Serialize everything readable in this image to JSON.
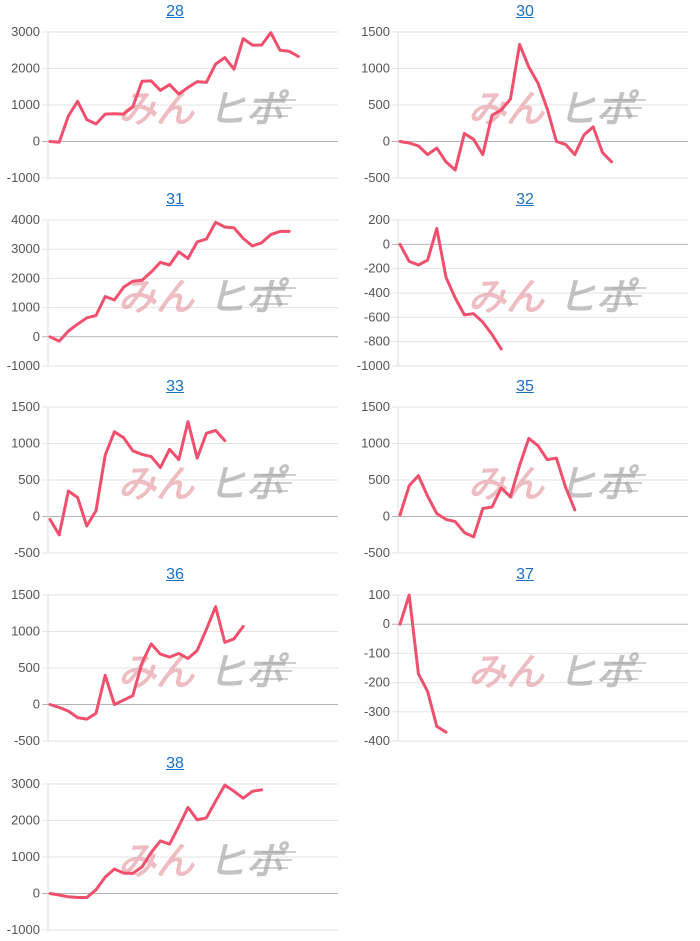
{
  "watermark": {
    "left": "みん",
    "right": "ヒポ",
    "left_color": "#e49aa4",
    "right_color": "#9b9b9b"
  },
  "series_color": "#f0506e",
  "link_color": "#1a6fc4",
  "chart_data": [
    {
      "type": "line",
      "title": "28",
      "ylim": [
        -1000,
        3000
      ],
      "yticks": [
        3000,
        2000,
        1000,
        0,
        -1000
      ],
      "values": [
        0,
        -20,
        700,
        1100,
        600,
        480,
        750,
        760,
        750,
        950,
        1650,
        1660,
        1400,
        1560,
        1300,
        1480,
        1640,
        1620,
        2120,
        2300,
        1980,
        2820,
        2640,
        2640,
        2980,
        2500,
        2470,
        2330
      ]
    },
    {
      "type": "line",
      "title": "30",
      "ylim": [
        -500,
        1500
      ],
      "yticks": [
        1500,
        1000,
        500,
        0,
        -500
      ],
      "values": [
        0,
        -20,
        -60,
        -180,
        -90,
        -280,
        -390,
        110,
        30,
        -180,
        360,
        430,
        580,
        1330,
        1020,
        800,
        450,
        0,
        -40,
        -180,
        90,
        200,
        -150,
        -280
      ]
    },
    {
      "type": "line",
      "title": "31",
      "ylim": [
        -1000,
        4000
      ],
      "yticks": [
        4000,
        3000,
        2000,
        1000,
        0,
        -1000
      ],
      "values": [
        0,
        -150,
        200,
        430,
        650,
        730,
        1380,
        1260,
        1700,
        1900,
        1940,
        2220,
        2550,
        2460,
        2910,
        2680,
        3250,
        3350,
        3920,
        3760,
        3730,
        3370,
        3110,
        3220,
        3500,
        3610,
        3610
      ]
    },
    {
      "type": "line",
      "title": "32",
      "ylim": [
        -1000,
        200
      ],
      "yticks": [
        200,
        0,
        -200,
        -400,
        -600,
        -800,
        -1000
      ],
      "values": [
        0,
        -140,
        -170,
        -130,
        130,
        -270,
        -440,
        -580,
        -570,
        -640,
        -740,
        -860
      ]
    },
    {
      "type": "line",
      "title": "33",
      "ylim": [
        -500,
        1500
      ],
      "yticks": [
        1500,
        1000,
        500,
        0,
        -500
      ],
      "values": [
        -40,
        -250,
        350,
        260,
        -130,
        80,
        840,
        1160,
        1080,
        900,
        850,
        820,
        670,
        920,
        780,
        1300,
        800,
        1140,
        1180,
        1040
      ]
    },
    {
      "type": "line",
      "title": "35",
      "ylim": [
        -500,
        1500
      ],
      "yticks": [
        1500,
        1000,
        500,
        0,
        -500
      ],
      "values": [
        20,
        420,
        560,
        280,
        40,
        -40,
        -70,
        -220,
        -280,
        110,
        130,
        390,
        270,
        700,
        1070,
        970,
        780,
        800,
        400,
        90
      ]
    },
    {
      "type": "line",
      "title": "36",
      "ylim": [
        -500,
        1500
      ],
      "yticks": [
        1500,
        1000,
        500,
        0,
        -500
      ],
      "values": [
        0,
        -40,
        -90,
        -180,
        -200,
        -120,
        400,
        0,
        60,
        120,
        570,
        830,
        690,
        650,
        700,
        630,
        740,
        1030,
        1340,
        850,
        900,
        1070
      ]
    },
    {
      "type": "line",
      "title": "37",
      "ylim": [
        -400,
        100
      ],
      "yticks": [
        100,
        0,
        -100,
        -200,
        -300,
        -400
      ],
      "values": [
        0,
        100,
        -170,
        -230,
        -350,
        -370
      ]
    },
    {
      "type": "line",
      "title": "38",
      "ylim": [
        -1000,
        3000
      ],
      "yticks": [
        3000,
        2000,
        1000,
        0,
        -1000
      ],
      "values": [
        0,
        -40,
        -90,
        -110,
        -110,
        100,
        450,
        670,
        560,
        550,
        730,
        1120,
        1440,
        1350,
        1840,
        2360,
        2020,
        2070,
        2530,
        2970,
        2800,
        2610,
        2800,
        2840
      ]
    }
  ]
}
